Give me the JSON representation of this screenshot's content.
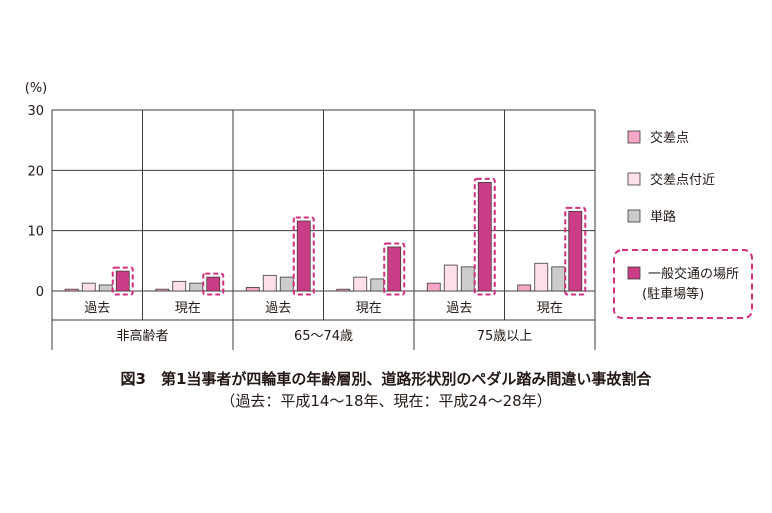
{
  "chart_data": {
    "type": "bar",
    "unit_label": "(%)",
    "ylim": [
      0,
      30
    ],
    "yticks": [
      0,
      10,
      20,
      30
    ],
    "grid": true,
    "legend_position": "right",
    "groups": [
      {
        "label": "非高齢者",
        "periods": [
          "過去",
          "現在"
        ]
      },
      {
        "label": "65〜74歳",
        "periods": [
          "過去",
          "現在"
        ]
      },
      {
        "label": "75歳以上",
        "periods": [
          "過去",
          "現在"
        ]
      }
    ],
    "categories": [
      "過去",
      "現在",
      "過去",
      "現在",
      "過去",
      "現在"
    ],
    "series": [
      {
        "name": "交差点",
        "color": "#f4a7c7",
        "values": [
          0.3,
          0.3,
          0.6,
          0.3,
          1.3,
          1.0
        ]
      },
      {
        "name": "交差点付近",
        "color": "#fde0ec",
        "values": [
          1.3,
          1.6,
          2.6,
          2.3,
          4.3,
          4.6
        ]
      },
      {
        "name": "単路",
        "color": "#cccccc",
        "values": [
          1.0,
          1.3,
          2.3,
          2.0,
          4.0,
          4.0
        ]
      },
      {
        "name": "一般交通の場所\n(駐車場等)",
        "color": "#cc3d87",
        "values": [
          3.3,
          2.3,
          11.6,
          7.3,
          18.0,
          13.2
        ],
        "highlight": true
      }
    ],
    "title": "図3　第1当事者が四輪車の年齢層別、道路形状別のペダル踏み間違い事故割合",
    "subtitle": "（過去：平成14〜18年、現在：平成24〜28年）"
  }
}
